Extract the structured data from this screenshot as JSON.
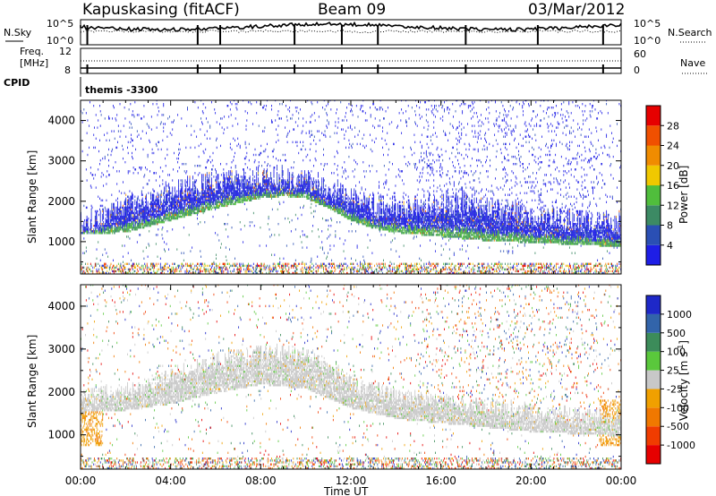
{
  "header": {
    "title": "Kapuskasing (fitACF)",
    "beam": "Beam 09",
    "date": "03/Mar/2012"
  },
  "noise_panel": {
    "label": "N.Sky",
    "right_label": "N.Search",
    "left_ticks": [
      "10^5",
      "10^0"
    ],
    "right_ticks": [
      "10^5",
      "10^0"
    ]
  },
  "freq_panel": {
    "label_top": "Freq.",
    "label_unit": "[MHz]",
    "left_ticks": [
      "12",
      "8"
    ],
    "right_label": "Nave",
    "right_ticks": [
      "60",
      "0"
    ]
  },
  "cpid": {
    "label": "CPID",
    "value": "themis -3300"
  },
  "chart_data": [
    {
      "type": "heatmap",
      "name": "power",
      "ylabel": "Slant Range [km]",
      "ylim": [
        200,
        4500
      ],
      "yticks": [
        1000,
        2000,
        3000,
        4000
      ],
      "xlim": [
        0,
        24
      ],
      "xticks": [
        0,
        4,
        8,
        12,
        16,
        20,
        24
      ],
      "xticklabels": [
        "00:00",
        "04:00",
        "08:00",
        "12:00",
        "16:00",
        "20:00",
        "00:00"
      ],
      "colorbar": {
        "label": "Power [dB]",
        "ticks": [
          "4",
          "8",
          "12",
          "16",
          "20",
          "24",
          "28"
        ],
        "colors": [
          "#1e1ee6",
          "#2a4fb4",
          "#3c8a64",
          "#50be3c",
          "#f0c800",
          "#f08c00",
          "#f05000",
          "#e60000"
        ]
      },
      "main_band_upper_km": [
        [
          0,
          1450
        ],
        [
          1,
          1600
        ],
        [
          2,
          1850
        ],
        [
          3,
          2050
        ],
        [
          4,
          2250
        ],
        [
          5,
          2350
        ],
        [
          6,
          2450
        ],
        [
          7,
          2550
        ],
        [
          8,
          2600
        ],
        [
          9,
          2600
        ],
        [
          10,
          2500
        ],
        [
          11,
          2300
        ],
        [
          12,
          2050
        ],
        [
          13,
          1900
        ],
        [
          14,
          1800
        ],
        [
          15,
          1850
        ],
        [
          16,
          1950
        ],
        [
          17,
          1950
        ],
        [
          18,
          1850
        ],
        [
          19,
          1750
        ],
        [
          20,
          1650
        ],
        [
          21,
          1550
        ],
        [
          22,
          1500
        ],
        [
          23,
          1450
        ],
        [
          24,
          1450
        ]
      ],
      "main_band_lower_km": [
        [
          0,
          1150
        ],
        [
          2,
          1200
        ],
        [
          4,
          1500
        ],
        [
          6,
          1800
        ],
        [
          8,
          2050
        ],
        [
          9,
          2100
        ],
        [
          10,
          2050
        ],
        [
          11,
          1800
        ],
        [
          12,
          1500
        ],
        [
          13,
          1300
        ],
        [
          14,
          1200
        ],
        [
          16,
          1100
        ],
        [
          18,
          1000
        ],
        [
          20,
          950
        ],
        [
          22,
          900
        ],
        [
          24,
          850
        ]
      ]
    },
    {
      "type": "heatmap",
      "name": "velocity",
      "ylabel": "Slant Range [km]",
      "xlabel": "Time UT",
      "ylim": [
        200,
        4500
      ],
      "yticks": [
        1000,
        2000,
        3000,
        4000
      ],
      "xlim": [
        0,
        24
      ],
      "xticks": [
        0,
        4,
        8,
        12,
        16,
        20,
        24
      ],
      "xticklabels": [
        "00:00",
        "04:00",
        "08:00",
        "12:00",
        "16:00",
        "20:00",
        "00:00"
      ],
      "colorbar": {
        "label": "Velocity [m s",
        "label_sup": "-1",
        "label_end": "]",
        "ticks": [
          "1000",
          "500",
          "100",
          "25",
          "-25",
          "-100",
          "-500",
          "-1000"
        ],
        "colors": [
          "#1e28c8",
          "#3264aa",
          "#3c8c5a",
          "#5ac83c",
          "#c8c8c8",
          "#f0a000",
          "#f07800",
          "#f03c00",
          "#e60000"
        ]
      },
      "ground_scatter_upper_km": [
        [
          0,
          1900
        ],
        [
          2,
          2000
        ],
        [
          4,
          2350
        ],
        [
          6,
          2700
        ],
        [
          8,
          2900
        ],
        [
          10,
          2850
        ],
        [
          11,
          2600
        ],
        [
          12,
          2200
        ],
        [
          14,
          1900
        ],
        [
          16,
          1750
        ],
        [
          18,
          1650
        ],
        [
          20,
          1550
        ],
        [
          22,
          1450
        ],
        [
          24,
          1400
        ]
      ],
      "ground_scatter_lower_km": [
        [
          0,
          1500
        ],
        [
          2,
          1550
        ],
        [
          4,
          1700
        ],
        [
          6,
          1950
        ],
        [
          8,
          2150
        ],
        [
          10,
          2050
        ],
        [
          12,
          1600
        ],
        [
          14,
          1350
        ],
        [
          16,
          1250
        ],
        [
          18,
          1150
        ],
        [
          20,
          1050
        ],
        [
          22,
          1000
        ],
        [
          24,
          950
        ]
      ]
    }
  ]
}
